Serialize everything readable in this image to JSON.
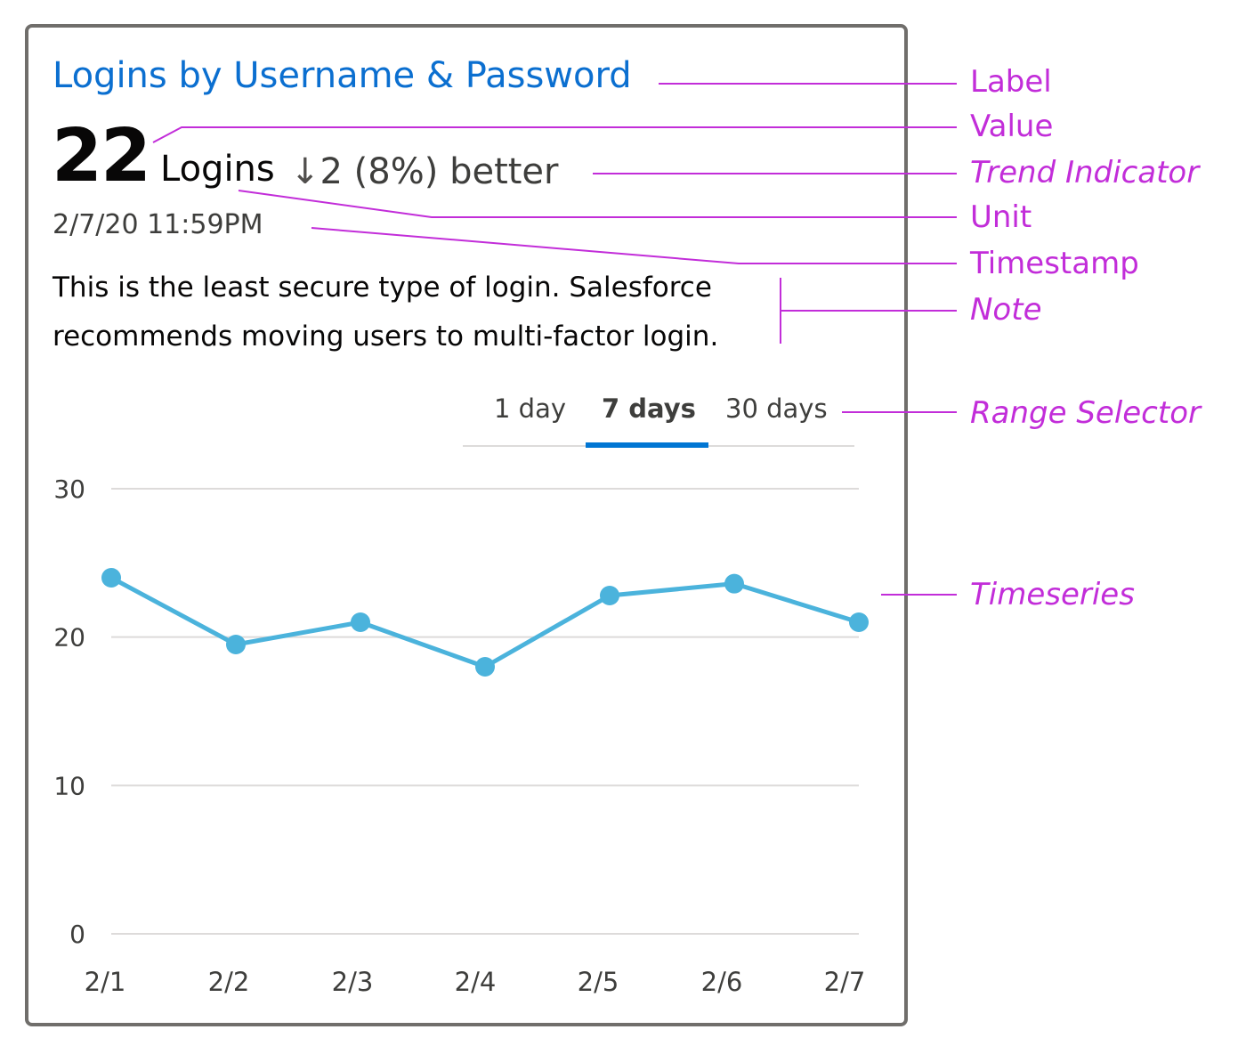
{
  "card": {
    "label": "Logins by Username & Password",
    "value": "22",
    "unit": "Logins",
    "trend_arrow": "↓",
    "trend_text": "2 (8%) better",
    "timestamp": "2/7/20 11:59PM",
    "note": "This is the least secure type of login. Salesforce recommends moving users to multi-factor login."
  },
  "range_selector": {
    "options": [
      "1 day",
      "7 days",
      "30 days"
    ],
    "selected": "7 days"
  },
  "annotations": {
    "label": "Label",
    "value": "Value",
    "trend": "Trend Indicator",
    "unit": "Unit",
    "timestamp": "Timestamp",
    "note": "Note",
    "range": "Range Selector",
    "timeseries": "Timeseries"
  },
  "colors": {
    "label": "#0b6fd0",
    "series": "#4bb3dc",
    "annotation": "#c22dd9",
    "selected_tab": "#0176d3"
  },
  "chart_data": {
    "type": "line",
    "x": [
      "2/1",
      "2/2",
      "2/3",
      "2/4",
      "2/5",
      "2/6",
      "2/7"
    ],
    "series": [
      {
        "values": [
          24,
          19.5,
          21,
          18,
          22.8,
          23.6,
          21
        ]
      }
    ],
    "yticks": [
      "0",
      "10",
      "20",
      "30"
    ],
    "ylim": [
      0,
      30
    ],
    "grid": true
  }
}
